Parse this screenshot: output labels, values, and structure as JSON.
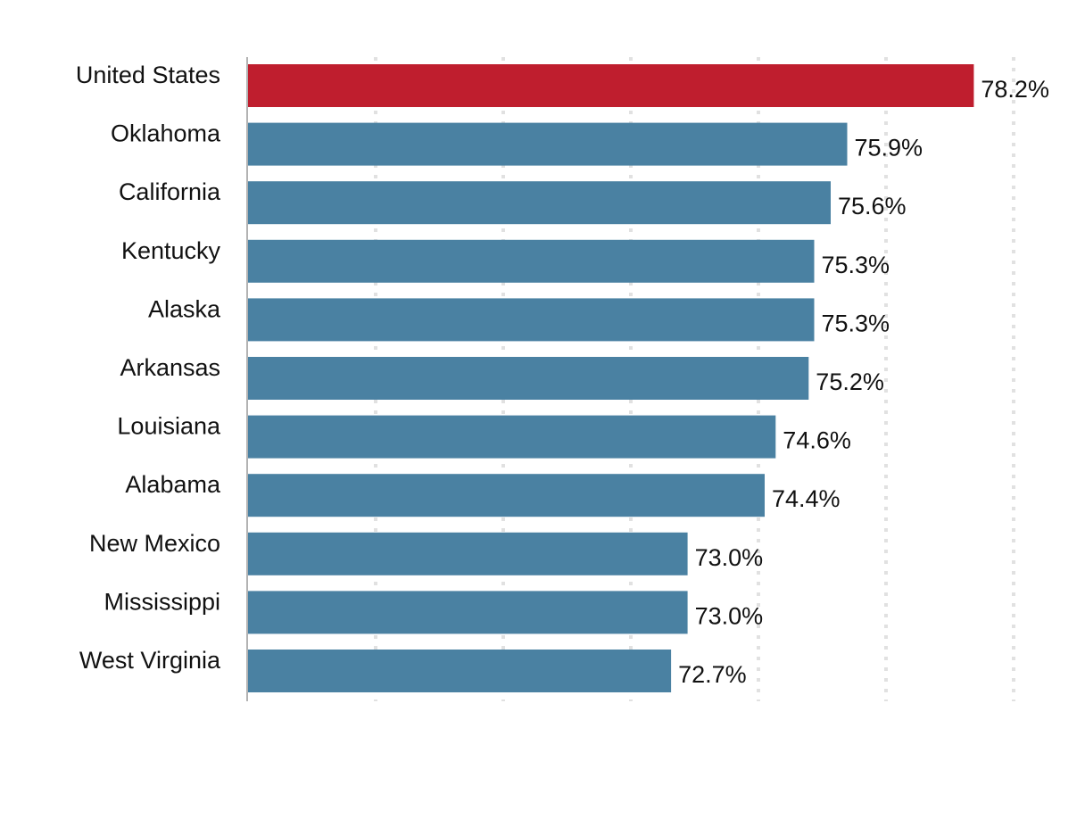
{
  "chart_data": {
    "type": "bar",
    "orientation": "horizontal",
    "title": "",
    "xlabel": "",
    "ylabel": "",
    "xlim": [
      0,
      30
    ],
    "grid": true,
    "legend": "none",
    "value_suffix": "%",
    "colors": {
      "highlight": "#bf1e2e",
      "default": "#4a81a2",
      "axis": "#b3b3b3",
      "grid": "#e1e1e1"
    },
    "categories": [
      "United States",
      "Oklahoma",
      "California",
      "Kentucky",
      "Alaska",
      "Arkansas",
      "Louisiana",
      "Alabama",
      "New Mexico",
      "Mississippi",
      "West Virginia"
    ],
    "values": [
      78.2,
      75.9,
      75.6,
      75.3,
      75.3,
      75.2,
      74.6,
      74.4,
      73.0,
      73.0,
      72.7
    ],
    "value_labels": [
      "78.2%",
      "75.9%",
      "75.6%",
      "75.3%",
      "75.3%",
      "75.2%",
      "74.6%",
      "74.4%",
      "73.0%",
      "73.0%",
      "72.7%"
    ],
    "highlight": [
      "United States"
    ]
  }
}
